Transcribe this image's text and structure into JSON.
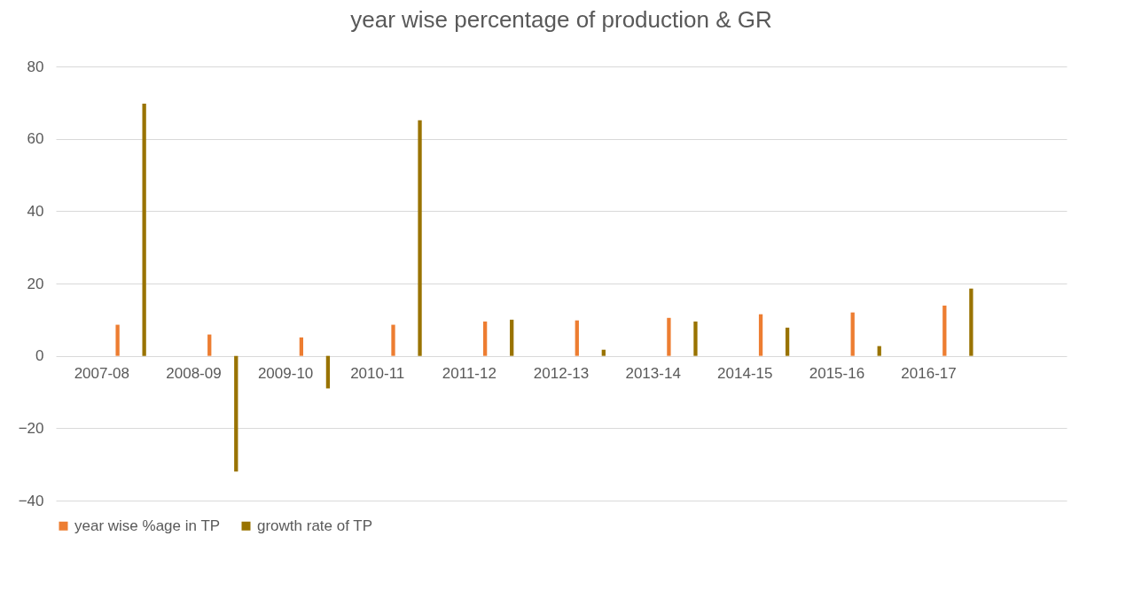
{
  "chart_data": {
    "type": "bar",
    "title": "year wise percentage of production  & GR",
    "categories": [
      "2007-08",
      "2008-09",
      "2009-10",
      "2010-11",
      "2011-12",
      "2012-13",
      "2013-14",
      "2014-15",
      "2015-16",
      "2016-17",
      null
    ],
    "series": [
      {
        "name": "year wise %age in TP",
        "color": "#ed7d31",
        "values": [
          8.6,
          5.9,
          5.1,
          8.6,
          9.5,
          9.8,
          10.5,
          11.5,
          12.0,
          13.9,
          null
        ]
      },
      {
        "name": "growth rate of TP",
        "color": "#997300",
        "values": [
          69.7,
          -32,
          -9,
          65.1,
          10,
          1.7,
          9.5,
          7.8,
          2.7,
          18.6,
          null
        ]
      }
    ],
    "ylim": [
      -40,
      80
    ],
    "yticks": [
      -40,
      -20,
      0,
      20,
      40,
      60,
      80
    ],
    "grid": "y",
    "legend": "bottom"
  }
}
